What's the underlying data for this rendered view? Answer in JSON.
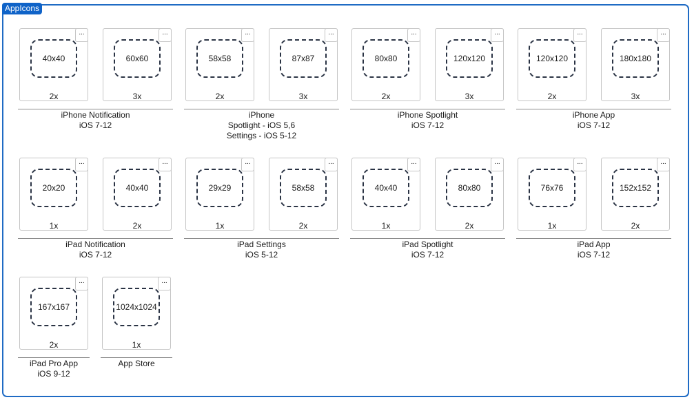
{
  "frame_title": "AppIcons",
  "more_label": "...",
  "rows": [
    [
      {
        "label": [
          "iPhone Notification",
          "iOS 7-12"
        ],
        "tiles": [
          {
            "size": "40x40",
            "scale": "2x"
          },
          {
            "size": "60x60",
            "scale": "3x"
          }
        ]
      },
      {
        "label": [
          "iPhone",
          "Spotlight - iOS 5,6",
          "Settings - iOS 5-12"
        ],
        "tiles": [
          {
            "size": "58x58",
            "scale": "2x"
          },
          {
            "size": "87x87",
            "scale": "3x"
          }
        ]
      },
      {
        "label": [
          "iPhone Spotlight",
          "iOS 7-12"
        ],
        "tiles": [
          {
            "size": "80x80",
            "scale": "2x"
          },
          {
            "size": "120x120",
            "scale": "3x"
          }
        ]
      },
      {
        "label": [
          "iPhone App",
          "iOS 7-12"
        ],
        "tiles": [
          {
            "size": "120x120",
            "scale": "2x"
          },
          {
            "size": "180x180",
            "scale": "3x"
          }
        ]
      }
    ],
    [
      {
        "label": [
          "iPad Notification",
          "iOS 7-12"
        ],
        "tiles": [
          {
            "size": "20x20",
            "scale": "1x"
          },
          {
            "size": "40x40",
            "scale": "2x"
          }
        ]
      },
      {
        "label": [
          "iPad Settings",
          "iOS 5-12"
        ],
        "tiles": [
          {
            "size": "29x29",
            "scale": "1x"
          },
          {
            "size": "58x58",
            "scale": "2x"
          }
        ]
      },
      {
        "label": [
          "iPad Spotlight",
          "iOS 7-12"
        ],
        "tiles": [
          {
            "size": "40x40",
            "scale": "1x"
          },
          {
            "size": "80x80",
            "scale": "2x"
          }
        ]
      },
      {
        "label": [
          "iPad App",
          "iOS 7-12"
        ],
        "tiles": [
          {
            "size": "76x76",
            "scale": "1x"
          },
          {
            "size": "152x152",
            "scale": "2x"
          }
        ]
      }
    ],
    [
      {
        "label": [
          "iPad Pro App",
          "iOS 9-12"
        ],
        "tiles": [
          {
            "size": "167x167",
            "scale": "2x"
          }
        ]
      },
      {
        "label": [
          "App Store"
        ],
        "tiles": [
          {
            "size": "1024x1024",
            "scale": "1x"
          }
        ]
      }
    ]
  ]
}
